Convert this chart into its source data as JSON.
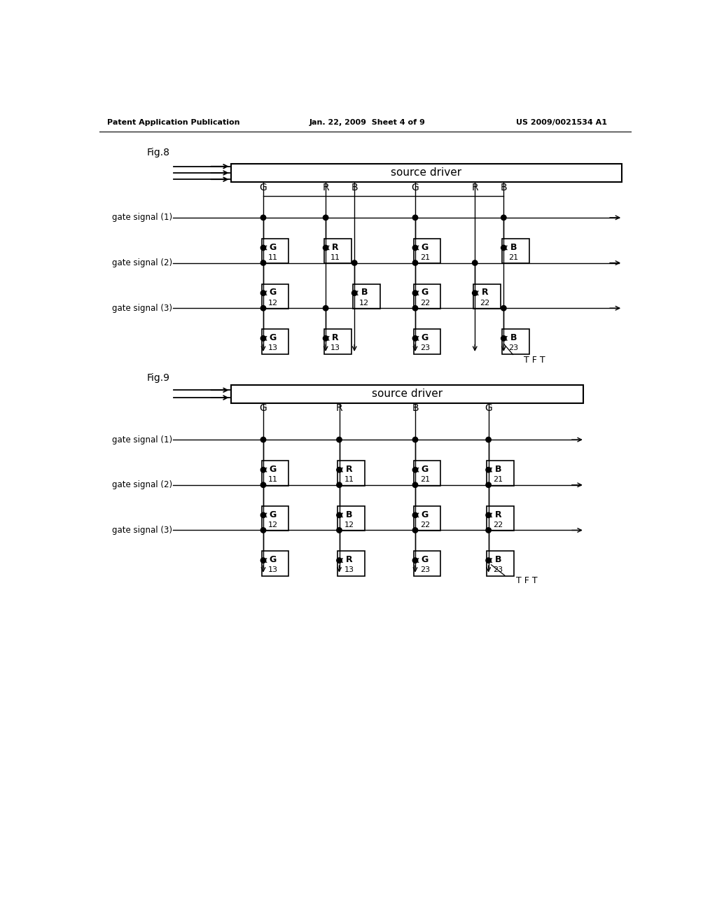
{
  "header_left": "Patent Application Publication",
  "header_mid": "Jan. 22, 2009  Sheet 4 of 9",
  "header_right": "US 2009/0021534 A1",
  "fig8_label": "Fig.8",
  "fig9_label": "Fig.9",
  "source_driver_label": "source driver",
  "tft_label": "T F T",
  "gate_signals": [
    "gate signal (1)",
    "gate signal (2)",
    "gate signal (3)"
  ],
  "fig8_col_labels": [
    "G",
    "R",
    "B",
    "G",
    "R",
    "B"
  ],
  "fig9_col_labels": [
    "G",
    "R",
    "B",
    "G"
  ],
  "fig8_cells": [
    {
      "row": 0,
      "col_idx": 0,
      "label": "G",
      "num": "11"
    },
    {
      "row": 0,
      "col_idx": 1,
      "label": "R",
      "num": "11"
    },
    {
      "row": 0,
      "col_idx": 3,
      "label": "G",
      "num": "21"
    },
    {
      "row": 0,
      "col_idx": 5,
      "label": "B",
      "num": "21"
    },
    {
      "row": 1,
      "col_idx": 0,
      "label": "G",
      "num": "12"
    },
    {
      "row": 1,
      "col_idx": 2,
      "label": "B",
      "num": "12"
    },
    {
      "row": 1,
      "col_idx": 3,
      "label": "G",
      "num": "22"
    },
    {
      "row": 1,
      "col_idx": 4,
      "label": "R",
      "num": "22"
    },
    {
      "row": 2,
      "col_idx": 0,
      "label": "G",
      "num": "13"
    },
    {
      "row": 2,
      "col_idx": 1,
      "label": "R",
      "num": "13"
    },
    {
      "row": 2,
      "col_idx": 3,
      "label": "G",
      "num": "23"
    },
    {
      "row": 2,
      "col_idx": 5,
      "label": "B",
      "num": "23"
    }
  ],
  "fig9_cells": [
    {
      "row": 0,
      "col_idx": 0,
      "label": "G",
      "num": "11"
    },
    {
      "row": 0,
      "col_idx": 1,
      "label": "R",
      "num": "11"
    },
    {
      "row": 0,
      "col_idx": 2,
      "label": "G",
      "num": "21"
    },
    {
      "row": 0,
      "col_idx": 3,
      "label": "B",
      "num": "21"
    },
    {
      "row": 1,
      "col_idx": 0,
      "label": "G",
      "num": "12"
    },
    {
      "row": 1,
      "col_idx": 1,
      "label": "B",
      "num": "12"
    },
    {
      "row": 1,
      "col_idx": 2,
      "label": "G",
      "num": "22"
    },
    {
      "row": 1,
      "col_idx": 3,
      "label": "R",
      "num": "22"
    },
    {
      "row": 2,
      "col_idx": 0,
      "label": "G",
      "num": "13"
    },
    {
      "row": 2,
      "col_idx": 1,
      "label": "R",
      "num": "13"
    },
    {
      "row": 2,
      "col_idx": 2,
      "label": "G",
      "num": "23"
    },
    {
      "row": 2,
      "col_idx": 3,
      "label": "B",
      "num": "23"
    }
  ],
  "bg_color": "#ffffff"
}
